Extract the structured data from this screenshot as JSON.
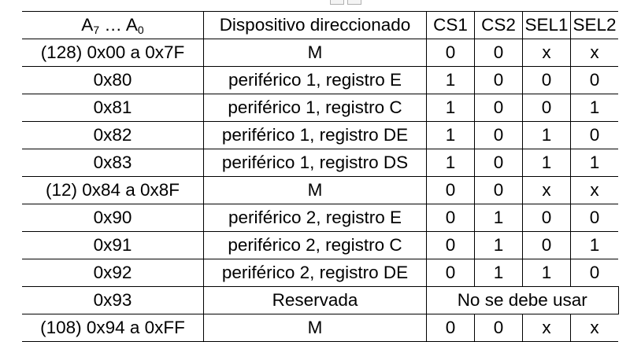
{
  "header": {
    "address_prefix": "A",
    "address_high_sub": "7",
    "address_ellipsis": " … ",
    "address_low_sub": "0",
    "device": "Dispositivo direccionado",
    "cs1": "CS1",
    "cs2": "CS2",
    "sel1": "SEL1",
    "sel2": "SEL2"
  },
  "rows": [
    {
      "address": "(128) 0x00  a  0x7F",
      "align": "left",
      "device": "M",
      "cs1": "0",
      "cs2": "0",
      "sel1": "x",
      "sel2": "x"
    },
    {
      "address": "0x80",
      "align": "center",
      "device": "periférico 1, registro E",
      "cs1": "1",
      "cs2": "0",
      "sel1": "0",
      "sel2": "0"
    },
    {
      "address": "0x81",
      "align": "center",
      "device": "periférico 1, registro C",
      "cs1": "1",
      "cs2": "0",
      "sel1": "0",
      "sel2": "1"
    },
    {
      "address": "0x82",
      "align": "center",
      "device": "periférico 1, registro DE",
      "cs1": "1",
      "cs2": "0",
      "sel1": "1",
      "sel2": "0"
    },
    {
      "address": "0x83",
      "align": "center",
      "device": "periférico 1, registro DS",
      "cs1": "1",
      "cs2": "0",
      "sel1": "1",
      "sel2": "1"
    },
    {
      "address": "(12)  0x84 a 0x8F",
      "align": "left",
      "device": "M",
      "cs1": "0",
      "cs2": "0",
      "sel1": "x",
      "sel2": "x"
    },
    {
      "address": "0x90",
      "align": "center",
      "device": "periférico 2, registro E",
      "cs1": "0",
      "cs2": "1",
      "sel1": "0",
      "sel2": "0"
    },
    {
      "address": "0x91",
      "align": "center",
      "device": "periférico 2, registro C",
      "cs1": "0",
      "cs2": "1",
      "sel1": "0",
      "sel2": "1"
    },
    {
      "address": "0x92",
      "align": "center",
      "device": "periférico 2, registro DE",
      "cs1": "0",
      "cs2": "1",
      "sel1": "1",
      "sel2": "0"
    },
    {
      "address": "0x93",
      "align": "center",
      "device": "Reservada",
      "merged": "No se debe usar"
    },
    {
      "address": "(108) 0x94  a  0xFF",
      "align": "left",
      "device": "M",
      "cs1": "0",
      "cs2": "0",
      "sel1": "x",
      "sel2": "x"
    }
  ]
}
